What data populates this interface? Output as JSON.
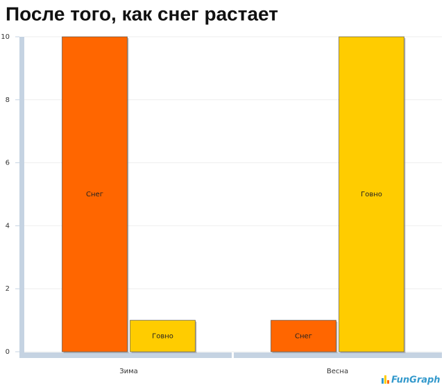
{
  "chart_data": {
    "type": "bar",
    "title": "После того, как снег растает",
    "categories": [
      "Зима",
      "Весна"
    ],
    "series": [
      {
        "name": "Снег",
        "color": "#ff6600",
        "values": [
          10,
          1
        ]
      },
      {
        "name": "Говно",
        "color": "#ffcc00",
        "values": [
          1,
          10
        ]
      }
    ],
    "ylim": [
      0,
      10
    ],
    "yticks": [
      0,
      2,
      4,
      6,
      8,
      10
    ],
    "grid": true,
    "watermark": "FunGraph"
  }
}
